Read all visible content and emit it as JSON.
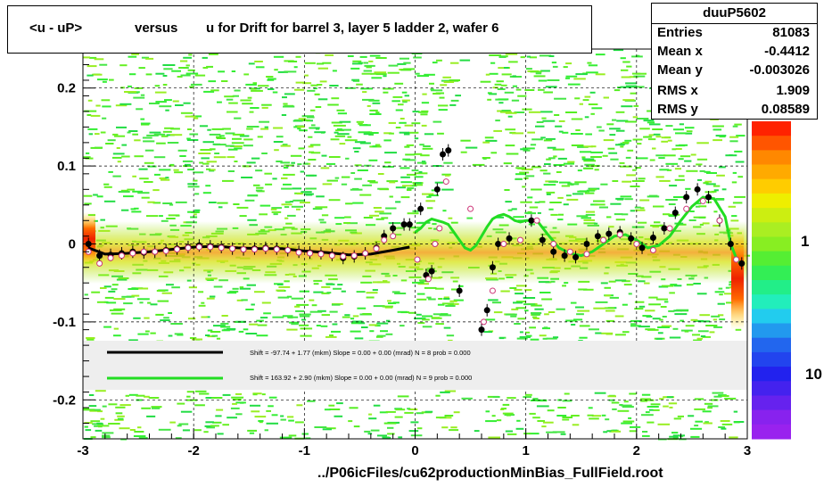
{
  "header": {
    "title_parts": [
      "<u - uP>",
      "versus",
      "u for Drift for barrel 3, layer 5 ladder 2, wafer 6"
    ]
  },
  "stats": {
    "name": "duuP5602",
    "rows": [
      {
        "key": "Entries",
        "value": "81083"
      },
      {
        "key": "Mean x",
        "value": "-0.4412"
      },
      {
        "key": "Mean y",
        "value": "-0.003026"
      },
      {
        "key": "RMS x",
        "value": "1.909"
      },
      {
        "key": "RMS y",
        "value": "0.08589"
      }
    ]
  },
  "footer": {
    "path": "../P06icFiles/cu62productionMinBias_FullField.root"
  },
  "colors": {
    "black_fit": "#000000",
    "green_fit": "#22dd22",
    "band": "#f2a11a",
    "background_green": "#33ee33"
  },
  "chart_data": {
    "type": "scatter",
    "xlim": [
      -3,
      3
    ],
    "ylim": [
      -0.25,
      0.25
    ],
    "x_ticks": [
      "-3",
      "-2",
      "-1",
      "0",
      "1",
      "2",
      "3"
    ],
    "y_ticks": [
      "-0.2",
      "-0.1",
      "0",
      "0.1",
      "0.2"
    ],
    "grid": true,
    "colorbar_labels": [
      "1",
      "10"
    ],
    "legend": [
      {
        "text": "Shift =   -97.74 + 1.77 (mkm) Slope =     0.00 + 0.00 (mrad)  N = 8 prob = 0.000"
      },
      {
        "text": "Shift =   163.92 + 2.90 (mkm) Slope =     0.00 + 0.00 (mrad)  N = 9 prob = 0.000"
      }
    ],
    "series": [
      {
        "marker": "filled-circle",
        "x": [
          -2.95,
          -2.85,
          -2.75,
          -2.65,
          -2.55,
          -2.45,
          -2.35,
          -2.25,
          -2.15,
          -2.05,
          -1.95,
          -1.85,
          -1.75,
          -1.65,
          -1.55,
          -1.45,
          -1.35,
          -1.25,
          -1.15,
          -1.05,
          -0.95,
          -0.85,
          -0.75,
          -0.65,
          -0.55,
          -0.45,
          -0.35,
          -0.28,
          -0.2,
          -0.1,
          -0.05,
          0.05,
          0.1,
          0.15,
          0.2,
          0.25,
          0.3,
          0.4,
          0.6,
          0.65,
          0.7,
          0.75,
          0.85,
          1.05,
          1.15,
          1.25,
          1.35,
          1.45,
          1.55,
          1.65,
          1.75,
          1.85,
          1.95,
          2.05,
          2.15,
          2.25,
          2.35,
          2.45,
          2.55,
          2.65,
          2.75,
          2.85,
          2.95
        ],
        "y": [
          0.0,
          -0.015,
          -0.014,
          -0.012,
          -0.01,
          -0.011,
          -0.01,
          -0.008,
          -0.006,
          -0.004,
          -0.002,
          -0.003,
          -0.004,
          -0.006,
          -0.007,
          -0.006,
          -0.005,
          -0.006,
          -0.008,
          -0.01,
          -0.011,
          -0.012,
          -0.014,
          -0.018,
          -0.016,
          -0.012,
          -0.005,
          0.01,
          0.02,
          0.025,
          0.025,
          0.045,
          -0.04,
          -0.035,
          0.07,
          0.115,
          0.12,
          -0.06,
          -0.11,
          -0.085,
          -0.03,
          0.0,
          0.007,
          0.03,
          0.005,
          -0.01,
          -0.015,
          -0.017,
          0.0,
          0.01,
          0.013,
          0.015,
          0.007,
          -0.005,
          0.008,
          0.02,
          0.04,
          0.06,
          0.07,
          0.06,
          0.03,
          0.0,
          -0.025
        ]
      },
      {
        "marker": "open-circle",
        "x": [
          -2.95,
          -2.85,
          -2.75,
          -2.65,
          -2.55,
          -2.45,
          -2.35,
          -2.25,
          -2.15,
          -2.05,
          -1.95,
          -1.85,
          -1.75,
          -1.65,
          -1.55,
          -1.45,
          -1.35,
          -1.25,
          -1.15,
          -1.05,
          -0.95,
          -0.85,
          -0.75,
          -0.65,
          -0.55,
          -0.45,
          -0.35,
          -0.28,
          -0.2,
          0.02,
          0.12,
          0.18,
          0.22,
          0.28,
          0.5,
          0.62,
          0.7,
          0.8,
          0.95,
          1.1,
          1.25,
          1.4,
          1.55,
          1.7,
          1.85,
          2.0,
          2.15,
          2.3,
          2.45,
          2.6,
          2.75,
          2.9
        ],
        "y": [
          -0.01,
          -0.025,
          -0.018,
          -0.015,
          -0.012,
          -0.01,
          -0.01,
          -0.009,
          -0.007,
          -0.005,
          -0.004,
          -0.004,
          -0.005,
          -0.006,
          -0.007,
          -0.007,
          -0.006,
          -0.007,
          -0.008,
          -0.011,
          -0.012,
          -0.013,
          -0.015,
          -0.016,
          -0.015,
          -0.012,
          -0.006,
          0.005,
          0.01,
          -0.02,
          -0.045,
          0.0,
          0.02,
          0.08,
          0.045,
          -0.1,
          -0.06,
          0.0,
          0.005,
          0.03,
          0.0,
          -0.01,
          -0.013,
          0.005,
          0.012,
          0.0,
          -0.008,
          0.02,
          0.045,
          0.055,
          0.03,
          -0.02
        ]
      }
    ],
    "fits": [
      {
        "name": "black",
        "x": [
          -2.95,
          -2.8,
          -2.6,
          -2.4,
          -2.2,
          -2.0,
          -1.8,
          -1.6,
          -1.4,
          -1.2,
          -1.0,
          -0.8,
          -0.6,
          -0.4,
          -0.2,
          -0.05
        ],
        "y": [
          -0.005,
          -0.013,
          -0.012,
          -0.01,
          -0.007,
          -0.004,
          -0.003,
          -0.005,
          -0.006,
          -0.006,
          -0.009,
          -0.011,
          -0.014,
          -0.013,
          -0.008,
          -0.004
        ]
      },
      {
        "name": "green",
        "x": [
          0.0,
          0.05,
          0.1,
          0.15,
          0.2,
          0.25,
          0.3,
          0.35,
          0.4,
          0.45,
          0.5,
          0.55,
          0.6,
          0.65,
          0.7,
          0.75,
          0.8,
          0.85,
          0.9,
          0.95,
          1.0,
          1.1,
          1.2,
          1.3,
          1.4,
          1.5,
          1.6,
          1.7,
          1.8,
          1.9,
          2.0,
          2.1,
          2.2,
          2.3,
          2.4,
          2.5,
          2.6,
          2.7,
          2.8,
          2.85,
          2.9,
          2.95
        ],
        "y": [
          0.015,
          0.02,
          0.028,
          0.032,
          0.03,
          0.028,
          0.025,
          0.015,
          0.005,
          -0.005,
          -0.008,
          -0.002,
          0.01,
          0.022,
          0.032,
          0.036,
          0.038,
          0.035,
          0.03,
          0.028,
          0.03,
          0.03,
          0.012,
          -0.005,
          -0.012,
          -0.015,
          -0.01,
          0.0,
          0.01,
          0.012,
          0.005,
          -0.005,
          -0.002,
          0.01,
          0.03,
          0.048,
          0.06,
          0.058,
          0.035,
          0.0,
          -0.018,
          -0.028
        ]
      }
    ]
  }
}
